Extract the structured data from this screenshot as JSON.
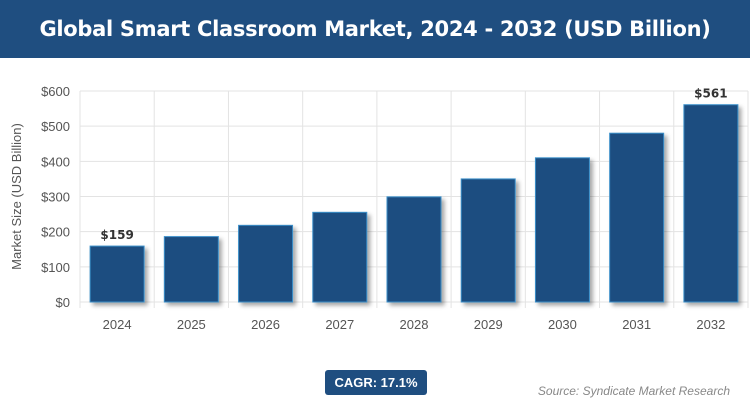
{
  "header": {
    "title": "Global Smart Classroom Market, 2024 - 2032 (USD Billion)"
  },
  "chart_data": {
    "type": "bar",
    "title": "Global Smart Classroom Market, 2024 - 2032 (USD Billion)",
    "categories": [
      "2024",
      "2025",
      "2026",
      "2027",
      "2028",
      "2029",
      "2030",
      "2031",
      "2032"
    ],
    "values": [
      159,
      186,
      218,
      255,
      299,
      350,
      410,
      480,
      561
    ],
    "data_labels": {
      "0": "$159",
      "8": "$561"
    },
    "xlabel": "",
    "ylabel": "Market Size (USD Billion)",
    "ylim": [
      0,
      600
    ],
    "yticks": [
      0,
      100,
      200,
      300,
      400,
      500,
      600
    ],
    "ytick_labels": [
      "$0",
      "$100",
      "$200",
      "$300",
      "$400",
      "$500",
      "$600"
    ],
    "grid": true,
    "bar_color": "#1f4e80"
  },
  "footer": {
    "cagr": "CAGR: 17.1%",
    "source": "Source: Syndicate Market Research"
  }
}
